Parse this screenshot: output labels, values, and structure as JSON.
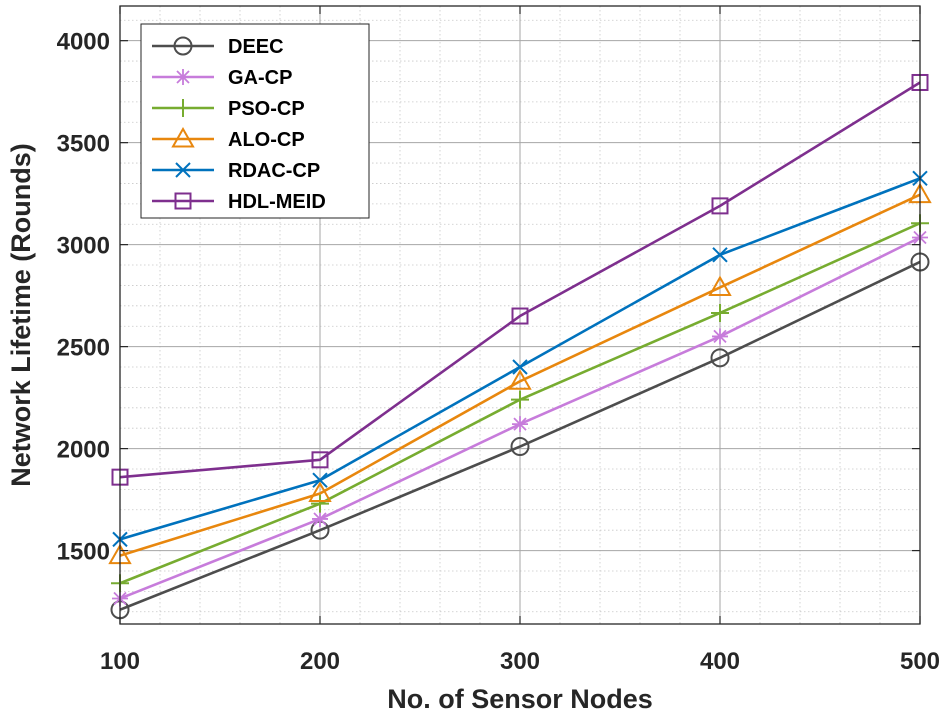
{
  "chart_data": {
    "type": "line",
    "title": "",
    "xlabel": "No. of Sensor Nodes",
    "ylabel": "Network Lifetime (Rounds)",
    "x": [
      100,
      200,
      300,
      400,
      500
    ],
    "xlim": [
      100,
      500
    ],
    "ylim": [
      1140,
      4170
    ],
    "xticks": [
      100,
      200,
      300,
      400,
      500
    ],
    "yticks": [
      1500,
      2000,
      2500,
      3000,
      3500,
      4000
    ],
    "grid": true,
    "minor_grid": true,
    "legend_position": "top-left",
    "series": [
      {
        "name": "DEEC",
        "marker": "circle",
        "color": "#4d4d4d",
        "values": [
          1210,
          1600,
          2010,
          2445,
          2915
        ]
      },
      {
        "name": "GA-CP",
        "marker": "asterisk",
        "color": "#c77cdb",
        "values": [
          1265,
          1655,
          2120,
          2550,
          3035
        ]
      },
      {
        "name": "PSO-CP",
        "marker": "plus",
        "color": "#77ac30",
        "values": [
          1340,
          1730,
          2240,
          2665,
          3105
        ]
      },
      {
        "name": "ALO-CP",
        "marker": "triangle",
        "color": "#e8870e",
        "values": [
          1475,
          1780,
          2330,
          2790,
          3245
        ]
      },
      {
        "name": "RDAC-CP",
        "marker": "cross",
        "color": "#0072bd",
        "values": [
          1555,
          1845,
          2400,
          2950,
          3325
        ]
      },
      {
        "name": "HDL-MEID",
        "marker": "square",
        "color": "#7e2f8e",
        "values": [
          1860,
          1945,
          2650,
          3190,
          3795
        ]
      }
    ]
  }
}
